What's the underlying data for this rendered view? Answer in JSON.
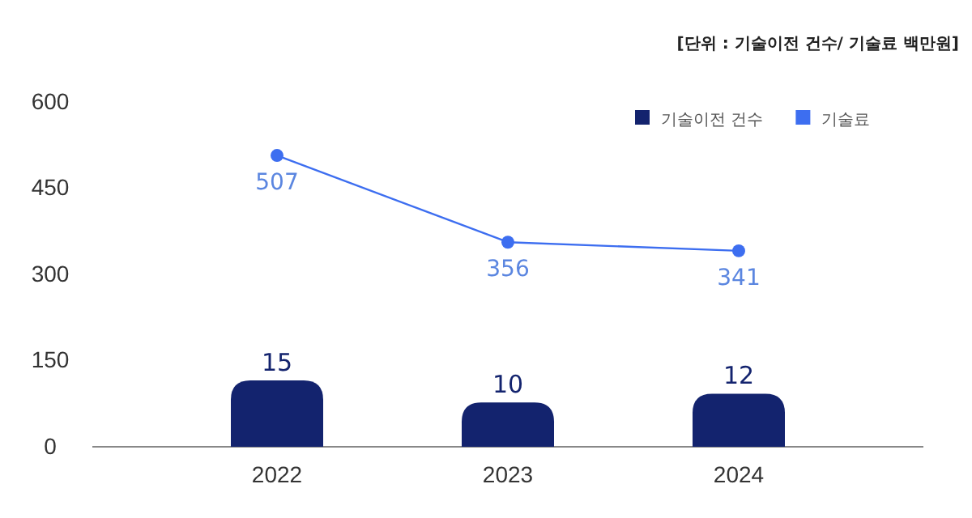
{
  "chart_data": {
    "type": "bar",
    "annotations": [
      "[단위 : 기술이전 건수/ 기술료 백만원]"
    ],
    "categories": [
      "2022",
      "2023",
      "2024"
    ],
    "series": [
      {
        "name": "기술이전 건수",
        "axis": "y2",
        "color": "#13236e",
        "values": [
          15,
          10,
          12
        ]
      },
      {
        "name": "기술료",
        "type": "line",
        "color": "#3d6ef0",
        "values": [
          507,
          356,
          341
        ]
      }
    ],
    "ylim": [
      0,
      600
    ],
    "yticks": [
      0,
      150,
      300,
      450,
      600
    ],
    "data_labels": true,
    "legend": "top right",
    "grid": false,
    "marker": "circle",
    "line_style": "solid"
  }
}
